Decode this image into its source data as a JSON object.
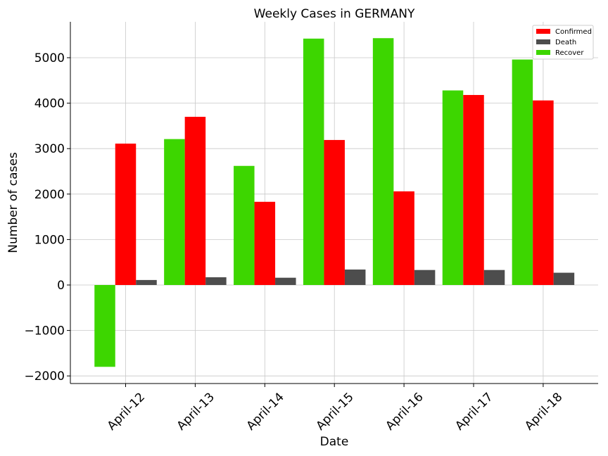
{
  "chart_data": {
    "type": "bar",
    "title": "Weekly Cases in GERMANY",
    "xlabel": "Date",
    "ylabel": "Number of cases",
    "categories": [
      "April-12",
      "April-13",
      "April-14",
      "April-15",
      "April-16",
      "April-17",
      "April-18"
    ],
    "series": [
      {
        "name": "Recover",
        "color": "#3dd600",
        "values": [
          -1800,
          3210,
          2620,
          5420,
          5430,
          4280,
          4960
        ]
      },
      {
        "name": "Confirmed",
        "color": "#ff0000",
        "values": [
          3110,
          3700,
          1830,
          3190,
          2060,
          4180,
          4060
        ]
      },
      {
        "name": "Death",
        "color": "#4d4d4d",
        "values": [
          110,
          170,
          160,
          340,
          330,
          330,
          270
        ]
      }
    ],
    "legend_order": [
      "Confirmed",
      "Death",
      "Recover"
    ],
    "legend_position": "top-right",
    "ylim": [
      -2170,
      5780
    ],
    "yticks": [
      -2000,
      -1000,
      0,
      1000,
      2000,
      3000,
      4000,
      5000
    ],
    "ytick_labels": [
      "−2000",
      "−1000",
      "0",
      "1000",
      "2000",
      "3000",
      "4000",
      "5000"
    ],
    "grid": true
  }
}
